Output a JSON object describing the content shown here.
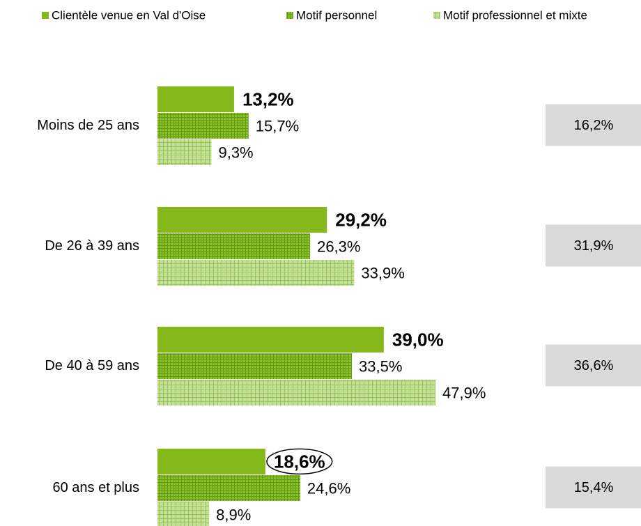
{
  "chart_data": {
    "type": "bar",
    "orientation": "horizontal",
    "categories": [
      "Moins de 25 ans",
      "De 26 à 39 ans",
      "De 40 à 59 ans",
      "60 ans et plus"
    ],
    "series": [
      {
        "name": "Clientèle venue en Val d'Oise",
        "color": "#84b81b",
        "pattern": "solid",
        "values": [
          13.2,
          29.2,
          39.0,
          18.6
        ],
        "value_labels": [
          "13,2%",
          "29,2%",
          "39,0%",
          "18,6%"
        ],
        "label_colors": [
          "#000000",
          "#000000",
          "#000000",
          "#000000"
        ],
        "circled": [
          false,
          false,
          false,
          true
        ]
      },
      {
        "name": "Motif personnel",
        "color": "#8cbf2a",
        "pattern": "grid-dense",
        "values": [
          15.7,
          26.3,
          33.5,
          24.6
        ],
        "value_labels": [
          "15,7%",
          "26,3%",
          "33,5%",
          "24,6%"
        ],
        "label_colors": [
          "#000000",
          "#000000",
          "#000000",
          "#e3261d"
        ]
      },
      {
        "name": "Motif professionnel et mixte",
        "color": "#b7d88a",
        "pattern": "grid-light",
        "values": [
          9.3,
          33.9,
          47.9,
          8.9
        ],
        "value_labels": [
          "9,3%",
          "33,9%",
          "47,9%",
          "8,9%"
        ],
        "label_colors": [
          "#000000",
          "#e3261d",
          "#e3261d",
          "#000000"
        ]
      }
    ],
    "reference": {
      "color": "#d9d9d9",
      "values": [
        16.2,
        31.9,
        36.6,
        15.4
      ],
      "value_labels": [
        "16,2%",
        "31,9%",
        "36,6%",
        "15,4%"
      ]
    }
  }
}
